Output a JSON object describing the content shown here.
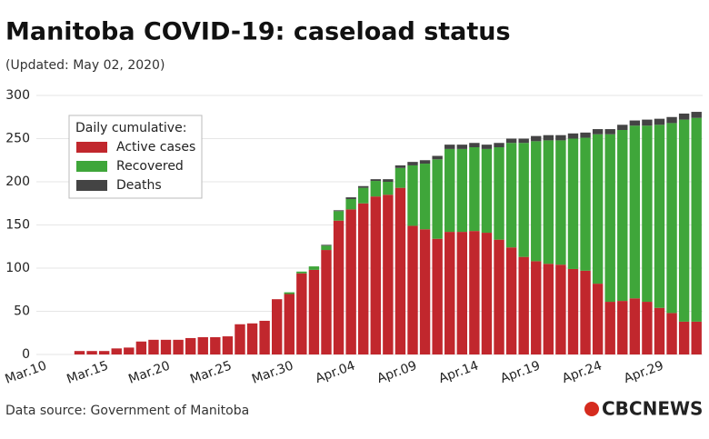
{
  "chart_data": {
    "type": "stacked_bar",
    "title": "Manitoba COVID-19: caseload status",
    "subtitle": "(Updated: May 02, 2020)",
    "source": "Data source: Government of Manitoba",
    "logo": "CBCNEWS",
    "legend_title": "Daily cumulative:",
    "legend_position": "upper left",
    "grid": true,
    "categories": [
      "Mar.10",
      null,
      null,
      null,
      null,
      "Mar.15",
      null,
      null,
      null,
      null,
      "Mar.20",
      null,
      null,
      null,
      null,
      "Mar.25",
      null,
      null,
      null,
      null,
      "Mar.30",
      null,
      null,
      null,
      null,
      "Apr.04",
      null,
      null,
      null,
      null,
      "Apr.09",
      null,
      null,
      null,
      null,
      "Apr.14",
      null,
      null,
      null,
      null,
      "Apr.19",
      null,
      null,
      null,
      null,
      "Apr.24",
      null,
      null,
      null,
      null,
      "Apr.29",
      null,
      null,
      null
    ],
    "series": [
      {
        "name": "Active cases",
        "color": "#c1272d",
        "values": [
          0,
          0,
          0,
          4,
          4,
          4,
          7,
          8,
          15,
          17,
          17,
          17,
          19,
          20,
          20,
          21,
          35,
          36,
          39,
          64,
          70,
          94,
          98,
          121,
          155,
          168,
          175,
          183,
          185,
          193,
          149,
          145,
          134,
          142,
          142,
          143,
          141,
          133,
          124,
          113,
          108,
          105,
          104,
          99,
          97,
          82,
          61,
          62,
          65,
          61,
          54,
          48,
          38,
          38
        ]
      },
      {
        "name": "Recovered",
        "color": "#3fa63a",
        "values": [
          0,
          0,
          0,
          0,
          0,
          0,
          0,
          0,
          0,
          0,
          0,
          0,
          0,
          0,
          0,
          0,
          0,
          0,
          0,
          0,
          2,
          2,
          4,
          5,
          11,
          12,
          18,
          18,
          15,
          23,
          70,
          76,
          92,
          96,
          96,
          97,
          97,
          107,
          121,
          132,
          139,
          143,
          144,
          151,
          154,
          173,
          194,
          198,
          200,
          204,
          212,
          220,
          234,
          236
        ]
      },
      {
        "name": "Deaths",
        "color": "#444444",
        "values": [
          0,
          0,
          0,
          0,
          0,
          0,
          0,
          0,
          0,
          0,
          0,
          0,
          0,
          0,
          0,
          0,
          0,
          0,
          0,
          0,
          0,
          0,
          0,
          1,
          1,
          2,
          2,
          2,
          3,
          3,
          4,
          4,
          4,
          5,
          5,
          5,
          5,
          5,
          5,
          5,
          6,
          6,
          6,
          6,
          6,
          6,
          6,
          6,
          6,
          7,
          7,
          7,
          7,
          7
        ]
      }
    ],
    "ylim": [
      0,
      300
    ],
    "yticks": [
      0,
      50,
      100,
      150,
      200,
      250,
      300
    ]
  }
}
